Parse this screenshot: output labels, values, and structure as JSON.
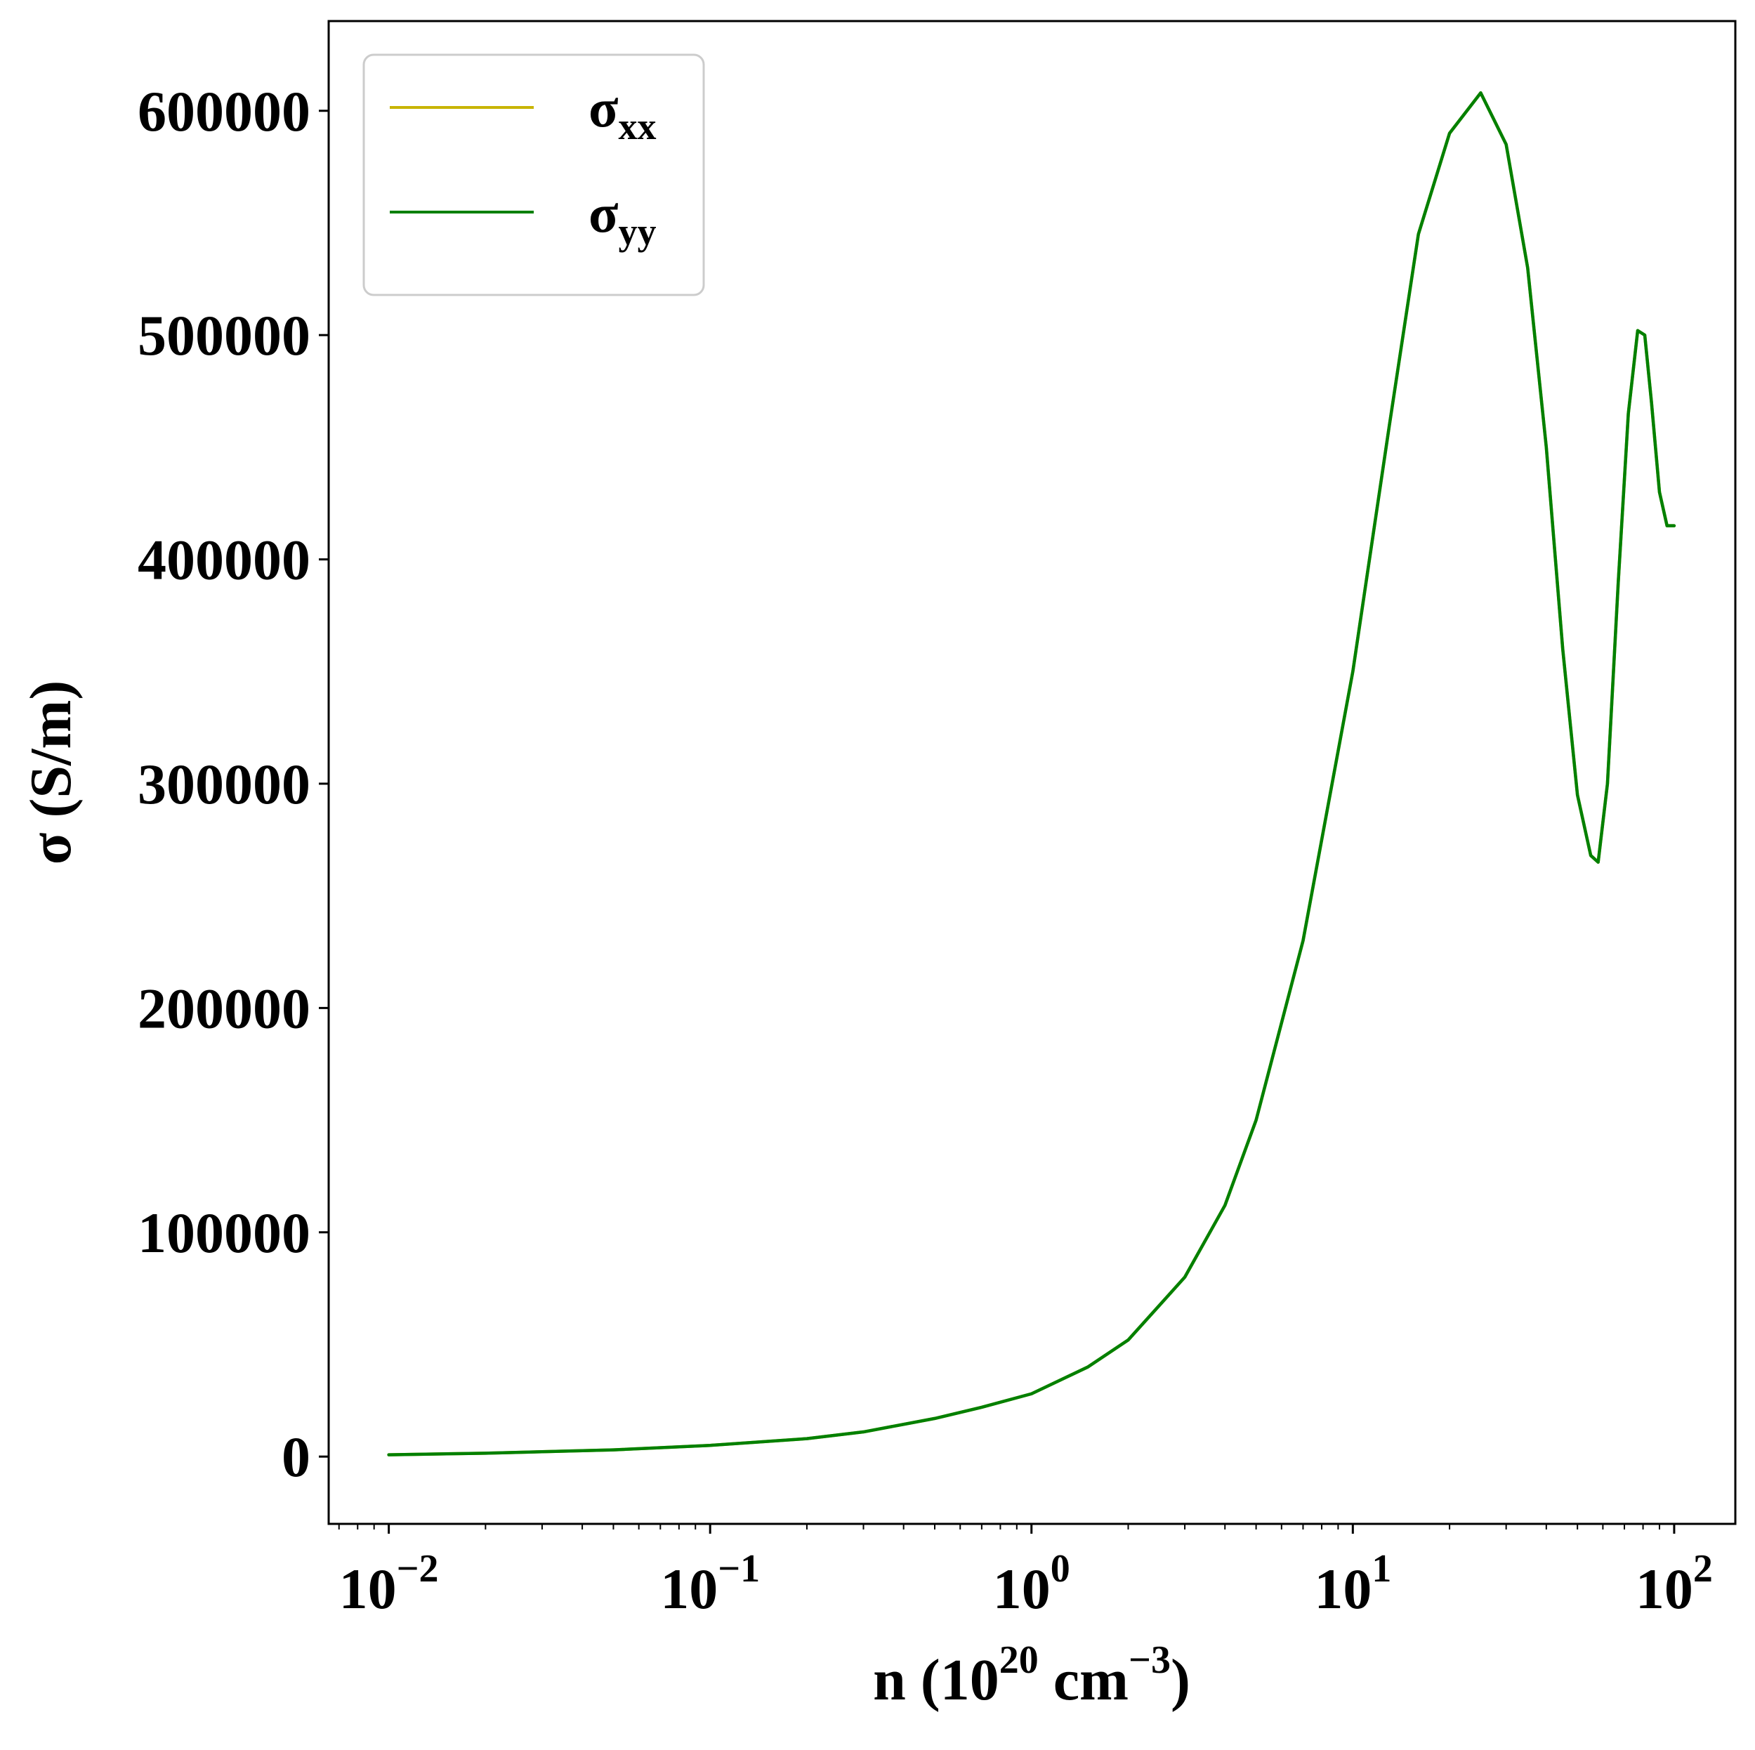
{
  "chart_data": {
    "type": "line",
    "xscale": "log",
    "xlim": [
      0.0065,
      155
    ],
    "ylim": [
      -30000,
      640000
    ],
    "grid": false,
    "legend_position": "top-left",
    "xlabel": {
      "base": "n (10",
      "exp1": "20",
      "mid": " cm",
      "exp2": "−3",
      "end": ")"
    },
    "ylabel": "σ (S/m)",
    "x_ticks": [
      {
        "value": 0.01,
        "base": "10",
        "exp": "−2"
      },
      {
        "value": 0.1,
        "base": "10",
        "exp": "−1"
      },
      {
        "value": 1,
        "base": "10",
        "exp": "0"
      },
      {
        "value": 10,
        "base": "10",
        "exp": "1"
      },
      {
        "value": 100,
        "base": "10",
        "exp": "2"
      }
    ],
    "y_ticks": [
      {
        "value": 0,
        "label": "0"
      },
      {
        "value": 100000,
        "label": "100000"
      },
      {
        "value": 200000,
        "label": "200000"
      },
      {
        "value": 300000,
        "label": "300000"
      },
      {
        "value": 400000,
        "label": "400000"
      },
      {
        "value": 500000,
        "label": "500000"
      },
      {
        "value": 600000,
        "label": "600000"
      }
    ],
    "series": [
      {
        "name": "σ",
        "sub": "xx",
        "color": "#c8b400",
        "x": [
          0.01,
          0.02,
          0.05,
          0.1,
          0.2,
          0.3,
          0.5,
          0.7,
          1,
          1.5,
          2,
          3,
          4,
          5,
          7,
          10,
          13,
          16,
          20,
          25,
          30,
          35,
          40,
          45,
          50,
          55,
          58,
          62,
          67,
          72,
          77,
          81,
          85,
          90,
          95,
          100
        ],
        "y": [
          800,
          1500,
          3000,
          5000,
          8000,
          11000,
          17000,
          22000,
          28000,
          40000,
          52000,
          80000,
          112000,
          150000,
          230000,
          350000,
          460000,
          545000,
          590000,
          608000,
          585000,
          530000,
          450000,
          360000,
          295000,
          268000,
          265000,
          300000,
          390000,
          465000,
          502000,
          500000,
          470000,
          430000,
          415000,
          415000
        ]
      },
      {
        "name": "σ",
        "sub": "yy",
        "color": "#008000",
        "x": [
          0.01,
          0.02,
          0.05,
          0.1,
          0.2,
          0.3,
          0.5,
          0.7,
          1,
          1.5,
          2,
          3,
          4,
          5,
          7,
          10,
          13,
          16,
          20,
          25,
          30,
          35,
          40,
          45,
          50,
          55,
          58,
          62,
          67,
          72,
          77,
          81,
          85,
          90,
          95,
          100
        ],
        "y": [
          800,
          1500,
          3000,
          5000,
          8000,
          11000,
          17000,
          22000,
          28000,
          40000,
          52000,
          80000,
          112000,
          150000,
          230000,
          350000,
          460000,
          545000,
          590000,
          608000,
          585000,
          530000,
          450000,
          360000,
          295000,
          268000,
          265000,
          300000,
          390000,
          465000,
          502000,
          500000,
          470000,
          430000,
          415000,
          415000
        ]
      }
    ]
  }
}
